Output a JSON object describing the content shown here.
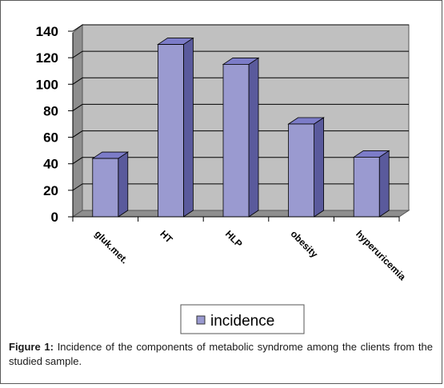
{
  "caption": {
    "label": "Figure 1:",
    "text": "Incidence of the components of metabolic syndrome among the clients from the studied sample."
  },
  "colors": {
    "bar_front": "#9a9ad0",
    "bar_top": "#7c7cc8",
    "bar_side": "#5a5a9c",
    "plot_back": "#c0c0c0",
    "plot_floor": "#8e8e8e"
  },
  "chart_data": {
    "type": "bar",
    "categories": [
      "gluk.met.",
      "HT",
      "HLP",
      "obesity",
      "hyperuricemia"
    ],
    "series": [
      {
        "name": "incidence",
        "values": [
          44,
          130,
          115,
          70,
          45
        ]
      }
    ],
    "title": "",
    "xlabel": "",
    "ylabel": "",
    "ylim": [
      0,
      140
    ],
    "yticks": [
      0,
      20,
      40,
      60,
      80,
      100,
      120,
      140
    ],
    "grid": true,
    "legend": "bottom-center"
  }
}
